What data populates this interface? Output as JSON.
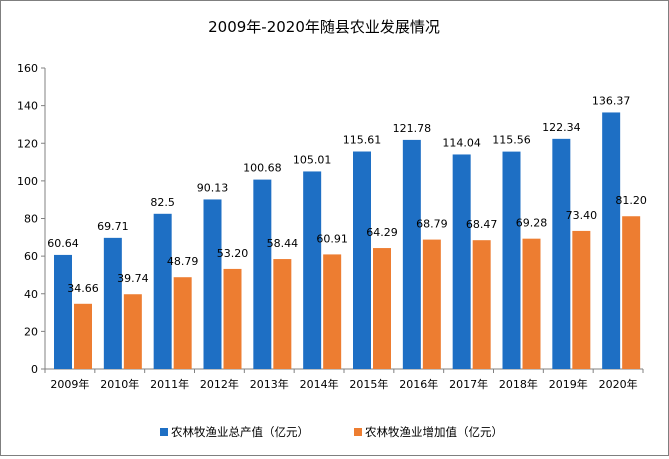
{
  "chart_data": {
    "type": "bar",
    "title": "2009年-2020年随县农业发展情况",
    "categories": [
      "2009年",
      "2010年",
      "2011年",
      "2012年",
      "2013年",
      "2014年",
      "2015年",
      "2016年",
      "2017年",
      "2018年",
      "2019年",
      "2020年"
    ],
    "series": [
      {
        "name": "农林牧渔业总产值（亿元）",
        "color": "#1e6fc4",
        "values": [
          60.64,
          69.71,
          82.5,
          90.13,
          100.68,
          105.01,
          115.61,
          121.78,
          114.04,
          115.56,
          122.34,
          136.37
        ],
        "labels": [
          "60.64",
          "69.71",
          "82.5",
          "90.13",
          "100.68",
          "105.01",
          "115.61",
          "121.78",
          "114.04",
          "115.56",
          "122.34",
          "136.37"
        ]
      },
      {
        "name": "农林牧渔业增加值（亿元）",
        "color": "#ed7d31",
        "values": [
          34.66,
          39.74,
          48.79,
          53.2,
          58.44,
          60.91,
          64.29,
          68.79,
          68.47,
          69.28,
          73.4,
          81.2
        ],
        "labels": [
          "34.66",
          "39.74",
          "48.79",
          "53.20",
          "58.44",
          "60.91",
          "64.29",
          "68.79",
          "68.47",
          "69.28",
          "73.40",
          "81.20"
        ]
      }
    ],
    "ylim": [
      0,
      160
    ],
    "yticks": [
      "0",
      "20",
      "40",
      "60",
      "80",
      "100",
      "120",
      "140",
      "160"
    ],
    "grid": false,
    "legend": "bottom"
  }
}
